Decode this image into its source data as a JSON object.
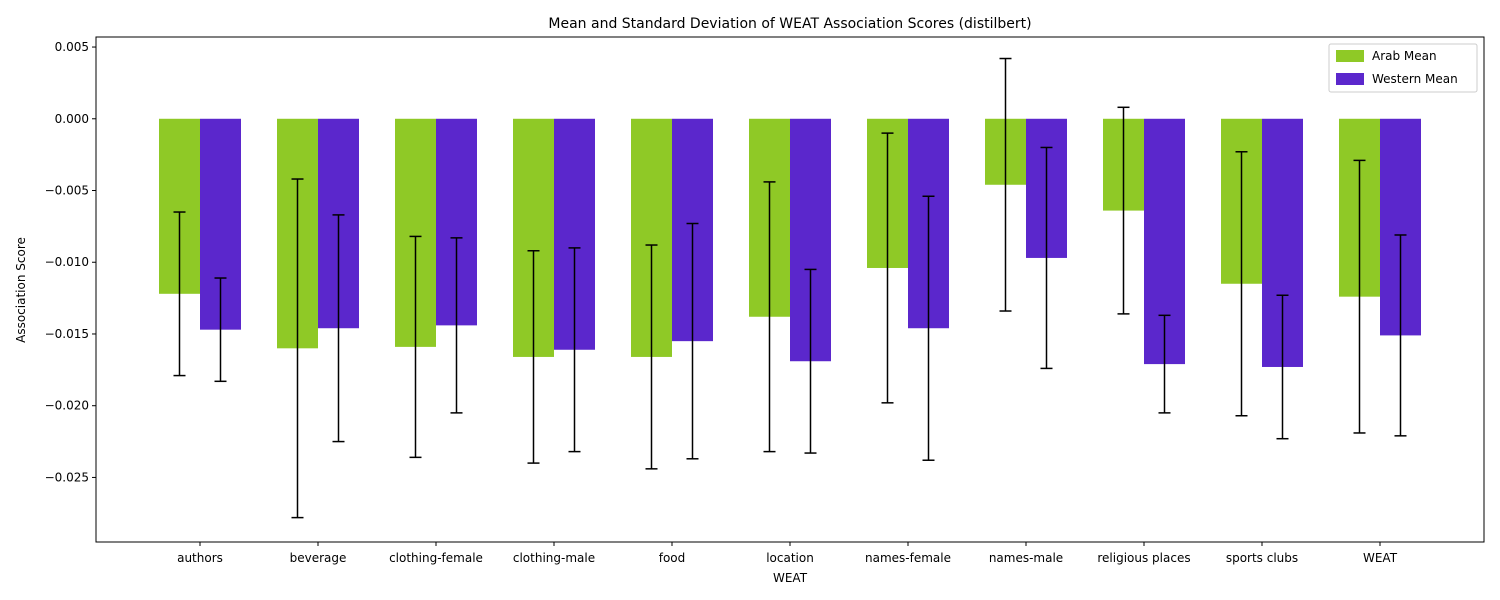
{
  "chart_data": {
    "type": "bar",
    "title": "Mean and Standard Deviation of WEAT Association Scores (distilbert)",
    "xlabel": "WEAT",
    "ylabel": "Association Score",
    "categories": [
      "authors",
      "beverage",
      "clothing-female",
      "clothing-male",
      "food",
      "location",
      "names-female",
      "names-male",
      "religious places",
      "sports clubs",
      "WEAT"
    ],
    "ylim": [
      -0.0295,
      0.0057
    ],
    "yticks": [
      -0.025,
      -0.02,
      -0.015,
      -0.01,
      -0.005,
      0.0,
      0.005
    ],
    "ytick_labels": [
      "−0.025",
      "−0.020",
      "−0.015",
      "−0.010",
      "−0.005",
      "0.000",
      "0.005"
    ],
    "grid": false,
    "legend_position": "top-right",
    "series": [
      {
        "name": "Arab Mean",
        "color": "#8fc926",
        "values": [
          -0.0122,
          -0.016,
          -0.0159,
          -0.0166,
          -0.0166,
          -0.0138,
          -0.0104,
          -0.0046,
          -0.0064,
          -0.0115,
          -0.0124
        ],
        "std": [
          0.0057,
          0.0118,
          0.0077,
          0.0074,
          0.0078,
          0.0094,
          0.0094,
          0.0088,
          0.0072,
          0.0092,
          0.0095
        ]
      },
      {
        "name": "Western Mean",
        "color": "#5b27cc",
        "values": [
          -0.0147,
          -0.0146,
          -0.0144,
          -0.0161,
          -0.0155,
          -0.0169,
          -0.0146,
          -0.0097,
          -0.0171,
          -0.0173,
          -0.0151
        ],
        "std": [
          0.0036,
          0.0079,
          0.0061,
          0.0071,
          0.0082,
          0.0064,
          0.0092,
          0.0077,
          0.0034,
          0.005,
          0.007
        ]
      }
    ]
  }
}
